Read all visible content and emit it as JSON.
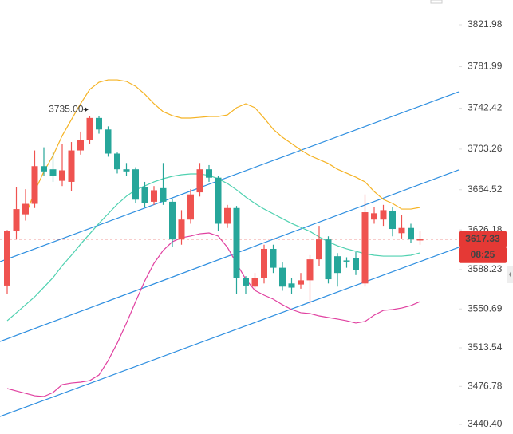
{
  "chart_data": {
    "type": "candlestick",
    "categories": [
      null,
      null,
      null,
      null,
      null,
      null,
      null,
      null,
      null,
      null,
      null,
      null,
      null,
      null,
      null,
      null,
      null,
      null,
      null,
      null,
      null,
      null,
      null,
      null,
      null,
      null,
      null,
      null,
      null,
      null,
      null,
      null,
      null,
      null,
      null,
      null,
      null,
      null,
      null,
      null,
      null,
      null,
      null,
      null,
      null,
      null
    ],
    "open": [
      3573,
      3625,
      3641,
      3651,
      3687,
      3684,
      3673,
      3672,
      3702,
      3712,
      3733,
      3722,
      3699,
      3684,
      3684,
      3667,
      3653,
      3666,
      3653,
      3617,
      3636,
      3662,
      3684,
      3676,
      3632,
      3647,
      3580,
      3572,
      3580,
      3608,
      3590,
      3575,
      3574,
      3578,
      3598,
      3617,
      3601,
      3597,
      3599,
      3575,
      3636,
      3636,
      3644,
      3623,
      3628,
      3616
    ],
    "high": [
      3626,
      3667,
      3665,
      3702,
      3705,
      3700,
      3708,
      3710,
      3720,
      3735,
      3735,
      3725,
      3700,
      3690,
      3686,
      3672,
      3668,
      3690,
      3656,
      3645,
      3665,
      3690,
      3688,
      3678,
      3650,
      3649,
      3582,
      3585,
      3612,
      3612,
      3595,
      3580,
      3585,
      3602,
      3630,
      3620,
      3604,
      3600,
      3605,
      3660,
      3648,
      3650,
      3648,
      3640,
      3632,
      3625
    ],
    "low": [
      3565,
      3617,
      3635,
      3647,
      3678,
      3672,
      3668,
      3663,
      3698,
      3708,
      3718,
      3696,
      3680,
      3678,
      3652,
      3648,
      3650,
      3650,
      3610,
      3612,
      3632,
      3658,
      3672,
      3625,
      3628,
      3565,
      3565,
      3568,
      3575,
      3585,
      3568,
      3565,
      3570,
      3555,
      3592,
      3575,
      3572,
      3590,
      3583,
      3572,
      3632,
      3630,
      3620,
      3618,
      3614,
      3612
    ],
    "close": [
      3625,
      3646,
      3651,
      3687,
      3682,
      3678,
      3683,
      3702,
      3712,
      3733,
      3722,
      3699,
      3684,
      3682,
      3655,
      3652,
      3664,
      3653,
      3617,
      3636,
      3660,
      3684,
      3676,
      3632,
      3647,
      3580,
      3573,
      3580,
      3608,
      3590,
      3572,
      3571,
      3578,
      3598,
      3617,
      3579,
      3585,
      3596,
      3588,
      3643,
      3642,
      3645,
      3627,
      3628,
      3617,
      3617.33
    ],
    "up_color": "#ef5350",
    "down_color": "#26a69a",
    "lines": [
      {
        "color": "#f5b324",
        "values": [
          null,
          null,
          3640,
          3662.8,
          3681.8,
          3697.1,
          3716.1,
          3731.4,
          3746.6,
          3760.3,
          3767.1,
          3769.4,
          3769.4,
          3767.9,
          3763.3,
          3755.7,
          3746.6,
          3739,
          3735.2,
          3732.9,
          3732.9,
          3733.6,
          3734.4,
          3734.4,
          3735.9,
          3742.8,
          3746.6,
          3742.8,
          3732.9,
          3722.2,
          3714.6,
          3708.5,
          3702.4,
          3697.1,
          3693.3,
          3689.5,
          3684.1,
          3680.3,
          3676.5,
          3672,
          3662.8,
          3655.2,
          3651.4,
          3646,
          3646,
          3647.6
        ]
      },
      {
        "color": "#4fd1b0",
        "values": [
          3539.4,
          3547,
          3554.6,
          3562.3,
          3571.4,
          3580.6,
          3592,
          3601.9,
          3612.5,
          3622.4,
          3632.3,
          3641.5,
          3650.6,
          3658.3,
          3664.4,
          3668.1,
          3672,
          3675,
          3677.3,
          3678.8,
          3679.6,
          3679.6,
          3678.1,
          3675,
          3670.4,
          3664.4,
          3657.5,
          3651.4,
          3646.1,
          3641.5,
          3636.9,
          3632.3,
          3628.5,
          3624.7,
          3619.4,
          3614.8,
          3611,
          3608,
          3605.7,
          3603.4,
          3601.9,
          3601.1,
          3601.1,
          3601.1,
          3601.9,
          3604.2
        ]
      },
      {
        "color": "#e040a0",
        "values": [
          3474.7,
          3472.4,
          3470.1,
          3467.8,
          3467.1,
          3470.9,
          3478.5,
          3480,
          3480.8,
          3482.3,
          3487.6,
          3501.3,
          3518.1,
          3537.2,
          3557.7,
          3577.5,
          3594.2,
          3606.5,
          3614.8,
          3618.6,
          3620.2,
          3622.4,
          3623.2,
          3620.2,
          3609.5,
          3594.2,
          3579,
          3568.4,
          3563.8,
          3560,
          3554.7,
          3550.1,
          3547.1,
          3546.3,
          3544,
          3542.5,
          3541,
          3539.4,
          3537.2,
          3538.7,
          3544.8,
          3549.3,
          3550.1,
          3551.6,
          3553.9,
          3557.7
        ]
      }
    ],
    "trendlines": [
      {
        "color": "#2f8fe0",
        "start": 3595.8,
        "end": 3758.0
      },
      {
        "color": "#2f8fe0",
        "start": 3519.6,
        "end": 3683.4
      },
      {
        "color": "#2f8fe0",
        "start": 3448.0,
        "end": 3609.5
      }
    ],
    "ylim": [
      3431.3,
      3845.6
    ],
    "yticks": [
      {
        "value": 3440.4,
        "label": "3440.40"
      },
      {
        "value": 3476.78,
        "label": "3476.78"
      },
      {
        "value": 3513.54,
        "label": "3513.54"
      },
      {
        "value": 3550.69,
        "label": "3550.69"
      },
      {
        "value": 3588.23,
        "label": "3588.23"
      },
      {
        "value": 3626.18,
        "label": "3626.18"
      },
      {
        "value": 3664.52,
        "label": "3664.52"
      },
      {
        "value": 3703.26,
        "label": "3703.26"
      },
      {
        "value": 3742.42,
        "label": "3742.42"
      },
      {
        "value": 3781.99,
        "label": "3781.99"
      },
      {
        "value": 3821.98,
        "label": "3821.98"
      }
    ],
    "annotation": {
      "value": 3735,
      "label": "3735.00",
      "index": 9
    },
    "last_price": 3617.33,
    "countdown": "08:25",
    "price_color": "#e53935"
  }
}
